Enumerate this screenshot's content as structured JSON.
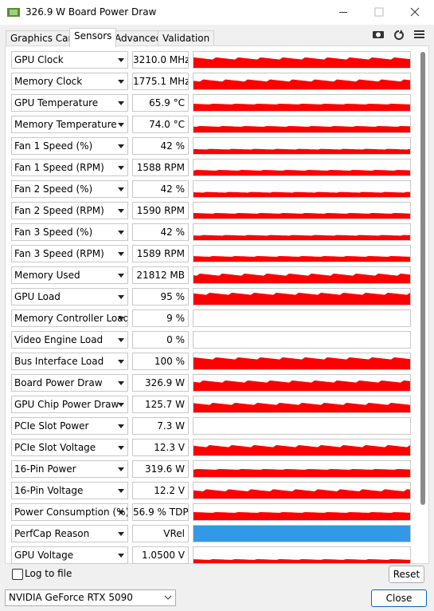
{
  "window": {
    "title": "326.9 W Board Power Draw"
  },
  "tabs": [
    "Graphics Card",
    "Sensors",
    "Advanced",
    "Validation"
  ],
  "sensors": [
    {
      "name": "GPU Clock",
      "value": "3210.0 MHz"
    },
    {
      "name": "Memory Clock",
      "value": "1775.1 MHz"
    },
    {
      "name": "GPU Temperature",
      "value": "65.9 °C"
    },
    {
      "name": "Memory Temperature",
      "value": "74.0 °C"
    },
    {
      "name": "Fan 1 Speed (%)",
      "value": "42 %"
    },
    {
      "name": "Fan 1 Speed (RPM)",
      "value": "1588 RPM"
    },
    {
      "name": "Fan 2 Speed (%)",
      "value": "42 %"
    },
    {
      "name": "Fan 2 Speed (RPM)",
      "value": "1590 RPM"
    },
    {
      "name": "Fan 3 Speed (%)",
      "value": "42 %"
    },
    {
      "name": "Fan 3 Speed (RPM)",
      "value": "1589 RPM"
    },
    {
      "name": "Memory Used",
      "value": "21812 MB"
    },
    {
      "name": "GPU Load",
      "value": "95 %"
    },
    {
      "name": "Memory Controller Load",
      "value": "9 %"
    },
    {
      "name": "Video Engine Load",
      "value": "0 %"
    },
    {
      "name": "Bus Interface Load",
      "value": "100 %"
    },
    {
      "name": "Board Power Draw",
      "value": "326.9 W"
    },
    {
      "name": "GPU Chip Power Draw",
      "value": "125.7 W"
    },
    {
      "name": "PCIe Slot Power",
      "value": "7.3 W"
    },
    {
      "name": "PCIe Slot Voltage",
      "value": "12.3 V"
    },
    {
      "name": "16-Pin Power",
      "value": "319.6 W"
    },
    {
      "name": "16-Pin Voltage",
      "value": "12.2 V"
    },
    {
      "name": "Power Consumption (%)",
      "value": "56.9 % TDP"
    },
    {
      "name": "PerfCap Reason",
      "value": "VRel"
    },
    {
      "name": "GPU Voltage",
      "value": "1.0500 V"
    }
  ],
  "footer": {
    "log_label": "Log to file",
    "reset": "Reset",
    "device": "NVIDIA GeForce RTX 5090",
    "close": "Close"
  }
}
